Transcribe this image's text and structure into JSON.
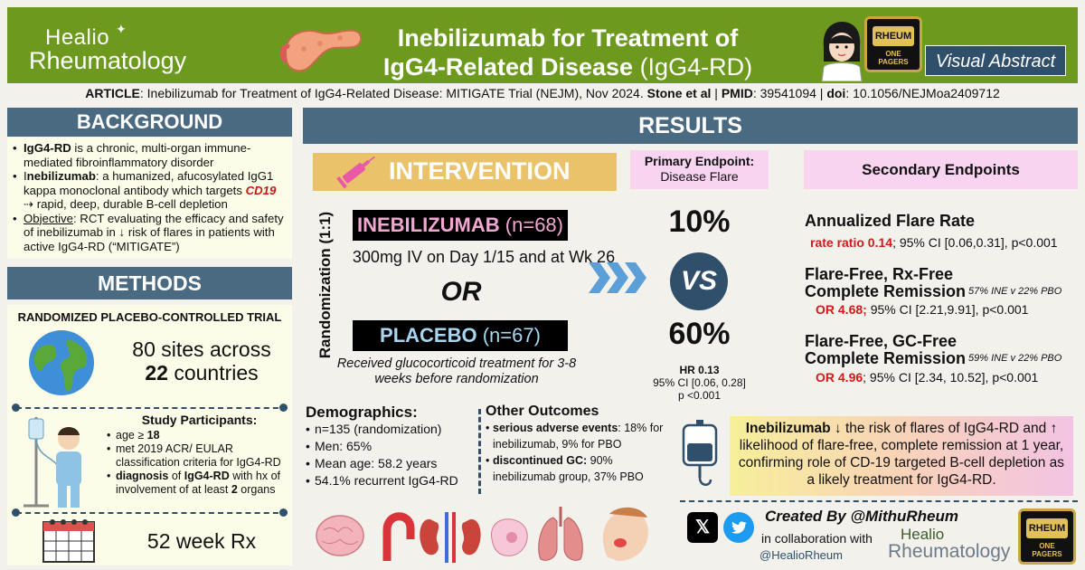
{
  "header": {
    "brand_top": "Healio",
    "brand_bottom": "Rheumatology",
    "title_line1": "Inebilizumab for Treatment of",
    "title_line2_bold": "IgG4-Related Disease",
    "title_line2_light": "(IgG4-RD)",
    "badge_top": "RHEUM",
    "badge_bottom": "ONE PAGERS",
    "visual_abstract": "Visual Abstract",
    "colors": {
      "header_bg": "#6d9a1e",
      "section_header": "#4a6a82",
      "navy": "#2f4f6a"
    }
  },
  "article": {
    "label": "ARTICLE",
    "text": ": Inebilizumab for Treatment of IgG4-Related Disease: MITIGATE Trial (NEJM), Nov 2024. ",
    "authors": "Stone et al",
    "sep1": " | ",
    "pmid_label": "PMID",
    "pmid": ": 39541094 | ",
    "doi_label": "doi",
    "doi": ": 10.1056/NEJMoa2409712"
  },
  "background": {
    "heading": "BACKGROUND",
    "b1_bold": "IgG4-RD",
    "b1_text": " is a chronic, multi-organ immune-mediated fibroinflammatory disorder",
    "b2_prefix": "I",
    "b2_bold": "nebilizumab",
    "b2_text": ": a humanized, afucosylated IgG1 kappa monoclonal antibody which targets ",
    "b2_red": "CD19",
    "b2_text2": " ⇢ rapid, deep, durable B-cell depletion",
    "b3_u": "Objective",
    "b3_text": ": RCT evaluating the efficacy and safety of inebilizumab in ↓ risk of flares in patients with active IgG4-RD (“MITIGATE”)"
  },
  "methods": {
    "heading": "METHODS",
    "design": "RANDOMIZED PLACEBO-CONTROLLED TRIAL",
    "sites_line1": "80 sites across",
    "sites_num": "22",
    "sites_word": " countries",
    "participants_title": "Study Participants:",
    "p1": "age ≥ ",
    "p1_bold": "18",
    "p2": "met 2019 ACR/ EULAR classification criteria for IgG4-RD",
    "p3_bold": "diagnosis",
    "p3_text": " of ",
    "p3_bold2": "IgG4-RD",
    "p3_text2": " with hx of involvement of at least ",
    "p3_bold3": "2",
    "p3_text3": " organs",
    "duration": "52 week Rx"
  },
  "results": {
    "heading": "RESULTS",
    "intervention": "INTERVENTION",
    "randomization": "Randomization (1:1)",
    "drug": "INEBILIZUMAB",
    "drug_n": "(n=68)",
    "dose": "300mg IV on Day 1/15 and at Wk 26",
    "or": "OR",
    "placebo": "PLACEBO",
    "placebo_n": "(n=67)",
    "placebo_note": "Received glucocorticoid treatment for 3-8 weeks before randomization",
    "primary_title": "Primary Endpoint:",
    "primary_sub": "Disease Flare",
    "pct_drug": "10%",
    "vs": "VS",
    "pct_placebo": "60%",
    "hr": "HR 0.13",
    "ci": "95% CI [0.06, 0.28]",
    "p": "p <0.001",
    "secondary_title": "Secondary Endpoints",
    "se1_title": "Annualized Flare Rate",
    "se1_red": "rate ratio 0.14",
    "se1_text": "; 95% CI [0.06,0.31], p<0.001",
    "se2_title1": "Flare-Free, Rx-Free",
    "se2_title2": "Complete Remission",
    "se2_small": "57% INE v 22% PBO",
    "se2_red": "OR 4.68;",
    "se2_text": " 95% CI [2.21,9.91], p<0.001",
    "se3_title1": "Flare-Free, GC-Free",
    "se3_title2": "Complete Remission",
    "se3_small": "59% INE v 22% PBO",
    "se3_red": "OR 4.96",
    "se3_text": "; 95% CI [2.34, 10.52], p<0.001"
  },
  "demographics": {
    "title": "Demographics:",
    "items": [
      "n=135 (randomization)",
      "Men: 65%",
      "Mean age: 58.2 years",
      "54.1% recurrent IgG4-RD"
    ]
  },
  "other_outcomes": {
    "title": "Other Outcomes",
    "o1_bold": "serious adverse events",
    "o1_text": ": 18% for inebilizumab, 9% for PBO",
    "o2_bold": "discontinued GC:",
    "o2_text": " 90% inebilizumab group, 37% PBO"
  },
  "conclusion": {
    "bold": "Inebilizumab",
    "text": " ↓ the risk of flares of IgG4-RD and ↑ likelihood of flare-free, complete remission at 1 year, confirming role of CD-19 targeted B-cell depletion as a likely treatment for IgG4-RD."
  },
  "footer": {
    "created_by": "Created By @MithuRheum",
    "collab": "in collaboration with",
    "handle": "@HealioRheum",
    "brand_top": "Healio",
    "brand_bottom": "Rheumatology",
    "x_icon": "x-icon",
    "twitter_icon": "twitter-icon"
  }
}
